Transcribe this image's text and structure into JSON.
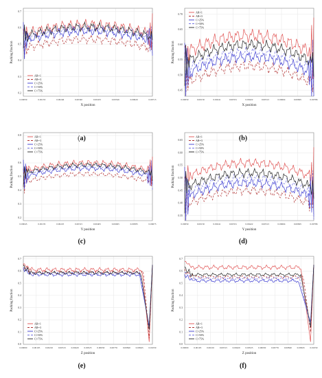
{
  "figure": {
    "panels": [
      {
        "id": "a",
        "caption": "(a)"
      },
      {
        "id": "b",
        "caption": "(b)"
      },
      {
        "id": "c",
        "caption": "(c)"
      },
      {
        "id": "d",
        "caption": "(d)"
      },
      {
        "id": "e",
        "caption": "(e)"
      },
      {
        "id": "f",
        "caption": "(f)"
      }
    ]
  },
  "chart_data": [
    {
      "type": "line",
      "panel": "a",
      "xlabel": "X position",
      "ylabel": "Packing fraction",
      "xticks": [
        "0.00059",
        "0.00153",
        "0.00246",
        "0.00340",
        "0.00433",
        "0.00526",
        "0.00620",
        "0.00713"
      ],
      "yticks": [
        "0.2",
        "0.3",
        "0.4",
        "0.5",
        "0.6",
        "0.7"
      ],
      "ylim": [
        0.18,
        0.72
      ],
      "legend_position": "bottom-left",
      "series": [
        {
          "name": "AR=1",
          "color": "#e05050",
          "dash": "",
          "base": 0.62,
          "amp": 0.035,
          "edge": "wall"
        },
        {
          "name": "AR=3",
          "color": "#b03030",
          "dash": "3,2",
          "base": 0.53,
          "amp": 0.03,
          "edge": "wall"
        },
        {
          "name": "C=25%",
          "color": "#3a3ad0",
          "dash": "",
          "base": 0.58,
          "amp": 0.03,
          "edge": "wall"
        },
        {
          "name": "C=50%",
          "color": "#7070e0",
          "dash": "3,2",
          "base": 0.595,
          "amp": 0.03,
          "edge": "wall"
        },
        {
          "name": "C=75%",
          "color": "#222222",
          "dash": "",
          "base": 0.605,
          "amp": 0.03,
          "edge": "wall"
        }
      ]
    },
    {
      "type": "line",
      "panel": "b",
      "xlabel": "X position",
      "ylabel": "Packing fraction",
      "xticks": [
        "0.00059",
        "0.00150",
        "0.00241",
        "0.00331",
        "0.00422",
        "0.00513",
        "0.00604",
        "0.00695",
        "0.00786"
      ],
      "yticks": [
        "0.45",
        "0.50",
        "0.55",
        "0.60",
        "0.65",
        "0.70"
      ],
      "ylim": [
        0.43,
        0.72
      ],
      "legend_position": "top-left",
      "series": [
        {
          "name": "AR=1",
          "color": "#e05050",
          "dash": "",
          "base": 0.63,
          "amp": 0.025,
          "edge": "wall"
        },
        {
          "name": "AR=3",
          "color": "#b03030",
          "dash": "3,2",
          "base": 0.53,
          "amp": 0.02,
          "edge": "wall"
        },
        {
          "name": "C=25%",
          "color": "#3a3ad0",
          "dash": "",
          "base": 0.56,
          "amp": 0.02,
          "edge": "wall"
        },
        {
          "name": "C=50%",
          "color": "#7070e0",
          "dash": "3,2",
          "base": 0.575,
          "amp": 0.02,
          "edge": "wall"
        },
        {
          "name": "C=75%",
          "color": "#222222",
          "dash": "",
          "base": 0.6,
          "amp": 0.02,
          "edge": "wall"
        }
      ]
    },
    {
      "type": "line",
      "panel": "c",
      "xlabel": "Y position",
      "ylabel": "Packing fraction",
      "xticks": [
        "0.00045",
        "0.00135",
        "0.00225",
        "0.00315",
        "0.00405",
        "0.00495",
        "0.00585",
        "0.00675"
      ],
      "yticks": [
        "0.2",
        "0.3",
        "0.4",
        "0.5",
        "0.6",
        "0.7",
        "0.8"
      ],
      "ylim": [
        0.18,
        0.82
      ],
      "legend_position": "top-left",
      "series": [
        {
          "name": "AR=1",
          "color": "#e05050",
          "dash": "",
          "base": 0.6,
          "amp": 0.025,
          "edge": "wall"
        },
        {
          "name": "AR=3",
          "color": "#b03030",
          "dash": "3,2",
          "base": 0.52,
          "amp": 0.02,
          "edge": "wall"
        },
        {
          "name": "C=25%",
          "color": "#3a3ad0",
          "dash": "",
          "base": 0.56,
          "amp": 0.02,
          "edge": "wall"
        },
        {
          "name": "C=50%",
          "color": "#7070e0",
          "dash": "3,2",
          "base": 0.575,
          "amp": 0.02,
          "edge": "wall"
        },
        {
          "name": "C=75%",
          "color": "#222222",
          "dash": "",
          "base": 0.585,
          "amp": 0.02,
          "edge": "wall"
        }
      ]
    },
    {
      "type": "line",
      "panel": "d",
      "xlabel": "Y position",
      "ylabel": "Packing fraction",
      "xticks": [
        "0.00059",
        "0.00150",
        "0.00241",
        "0.00331",
        "0.00422",
        "0.00513",
        "0.00604",
        "0.00695",
        "0.00786"
      ],
      "yticks": [
        "0.35",
        "0.40",
        "0.45",
        "0.50",
        "0.55",
        "0.60",
        "0.65"
      ],
      "ylim": [
        0.33,
        0.68
      ],
      "legend_position": "top-left",
      "series": [
        {
          "name": "AR=1",
          "color": "#e05050",
          "dash": "",
          "base": 0.56,
          "amp": 0.02,
          "edge": "wall"
        },
        {
          "name": "AR=3",
          "color": "#b03030",
          "dash": "3,2",
          "base": 0.45,
          "amp": 0.02,
          "edge": "wall"
        },
        {
          "name": "C=25%",
          "color": "#3a3ad0",
          "dash": "",
          "base": 0.48,
          "amp": 0.02,
          "edge": "wall"
        },
        {
          "name": "C=50%",
          "color": "#7070e0",
          "dash": "3,2",
          "base": 0.5,
          "amp": 0.02,
          "edge": "wall"
        },
        {
          "name": "C=75%",
          "color": "#222222",
          "dash": "",
          "base": 0.52,
          "amp": 0.02,
          "edge": "wall"
        }
      ]
    },
    {
      "type": "line",
      "panel": "e",
      "xlabel": "Z position",
      "ylabel": "Packing fraction",
      "xticks": [
        "0.00000",
        "0.00105",
        "0.00210",
        "0.00315",
        "0.00420",
        "0.00525",
        "0.00630",
        "0.00735",
        "0.00840",
        "0.00945",
        "0.01050"
      ],
      "yticks": [
        "0.0",
        "0.1",
        "0.2",
        "0.3",
        "0.4",
        "0.5",
        "0.6",
        "0.7"
      ],
      "ylim": [
        0.0,
        0.72
      ],
      "legend_position": "bottom-left",
      "series": [
        {
          "name": "AR=1",
          "color": "#e05050",
          "dash": "",
          "base": 0.61,
          "amp": 0.02,
          "edge": "drop",
          "drop_at": 0.92,
          "min": 0.02
        },
        {
          "name": "AR=3",
          "color": "#b03030",
          "dash": "3,2",
          "base": 0.59,
          "amp": 0.015,
          "edge": "drop",
          "drop_at": 0.93,
          "min": 0.05
        },
        {
          "name": "C=25%",
          "color": "#3a3ad0",
          "dash": "",
          "base": 0.57,
          "amp": 0.015,
          "edge": "drop",
          "drop_at": 0.9,
          "min": 0.15
        },
        {
          "name": "C=50%",
          "color": "#7070e0",
          "dash": "3,2",
          "base": 0.58,
          "amp": 0.015,
          "edge": "drop",
          "drop_at": 0.905,
          "min": 0.13
        },
        {
          "name": "C=75%",
          "color": "#222222",
          "dash": "",
          "base": 0.585,
          "amp": 0.015,
          "edge": "drop",
          "drop_at": 0.91,
          "min": 0.12
        }
      ]
    },
    {
      "type": "line",
      "panel": "f",
      "xlabel": "Z position",
      "ylabel": "Packing fraction",
      "xticks": [
        "0.00000",
        "0.00105",
        "0.00210",
        "0.00315",
        "0.00420",
        "0.00525",
        "0.00630",
        "0.00735",
        "0.00840",
        "0.00945",
        "0.01050"
      ],
      "yticks": [
        "0.0",
        "0.1",
        "0.2",
        "0.3",
        "0.4",
        "0.5",
        "0.6",
        "0.7"
      ],
      "ylim": [
        0.0,
        0.72
      ],
      "legend_position": "bottom-left",
      "series": [
        {
          "name": "AR=1",
          "color": "#e05050",
          "dash": "",
          "base": 0.63,
          "amp": 0.02,
          "edge": "drop",
          "drop_at": 0.9,
          "min": 0.02
        },
        {
          "name": "AR=3",
          "color": "#b03030",
          "dash": "3,2",
          "base": 0.55,
          "amp": 0.015,
          "edge": "drop",
          "drop_at": 0.92,
          "min": 0.1
        },
        {
          "name": "C=25%",
          "color": "#3a3ad0",
          "dash": "",
          "base": 0.52,
          "amp": 0.015,
          "edge": "drop",
          "drop_at": 0.88,
          "min": 0.18
        },
        {
          "name": "C=50%",
          "color": "#7070e0",
          "dash": "3,2",
          "base": 0.54,
          "amp": 0.015,
          "edge": "drop",
          "drop_at": 0.89,
          "min": 0.15
        },
        {
          "name": "C=75%",
          "color": "#222222",
          "dash": "",
          "base": 0.57,
          "amp": 0.015,
          "edge": "drop",
          "drop_at": 0.9,
          "min": 0.14
        }
      ]
    }
  ]
}
